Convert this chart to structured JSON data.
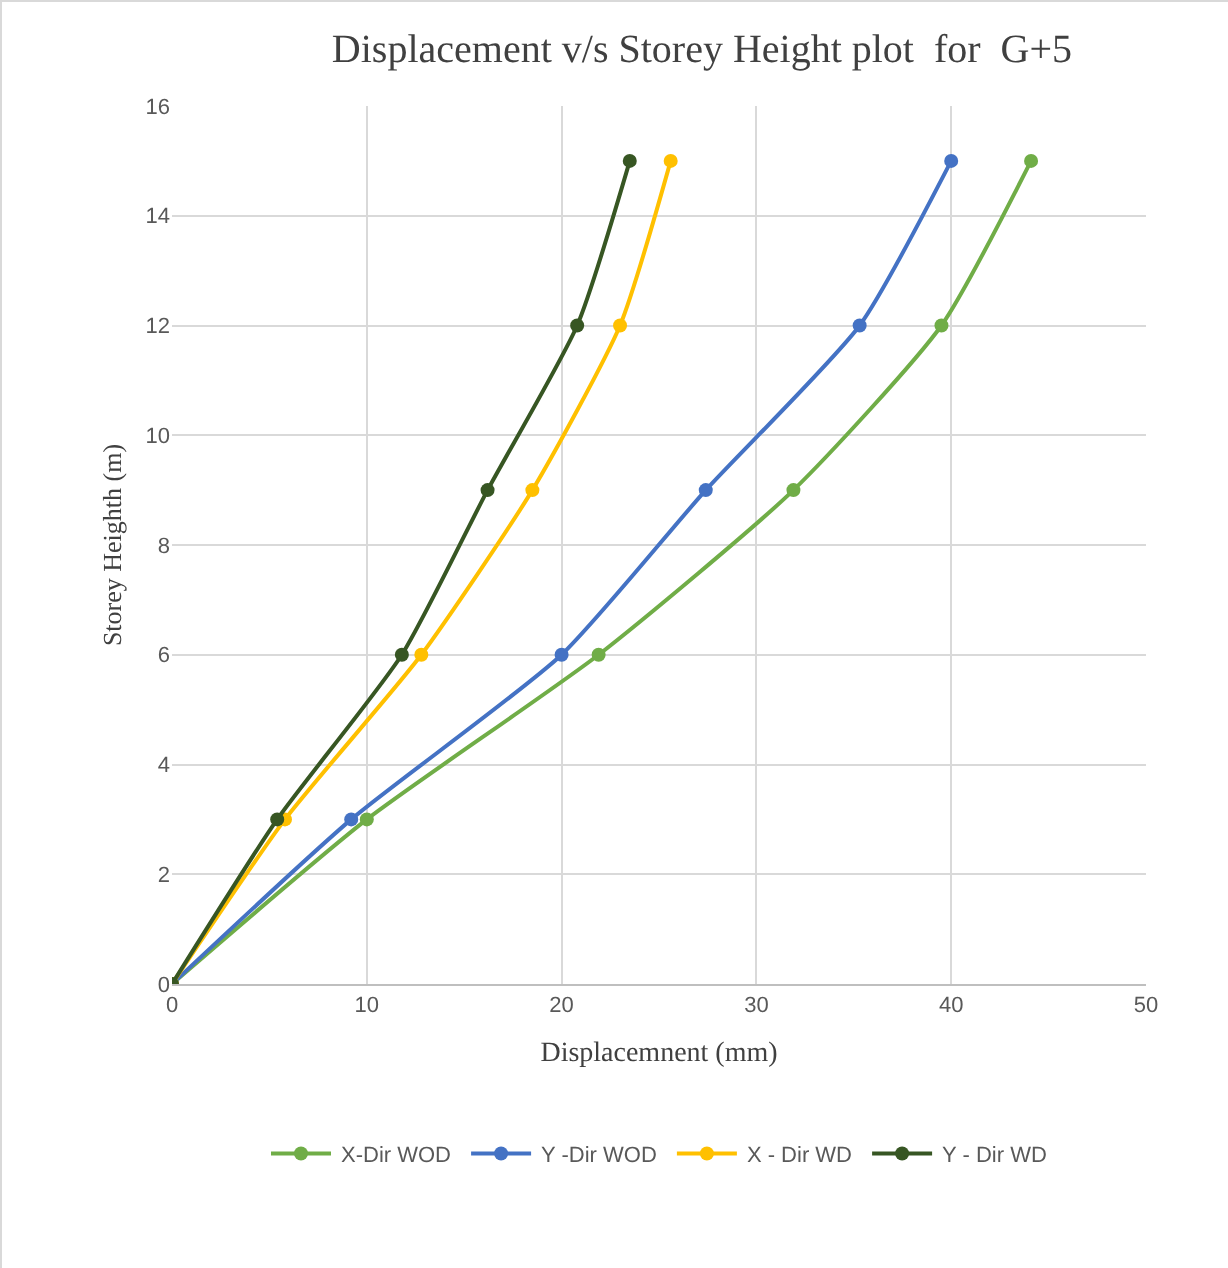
{
  "chart_data": {
    "type": "line",
    "title": "Displacement v/s Storey Height plot  for  G+5",
    "xlabel": "Displacemnent (mm)",
    "ylabel": "Storey Heighth (m)",
    "xlim": [
      0,
      50
    ],
    "xticks": [
      0,
      10,
      20,
      30,
      40,
      50
    ],
    "ylim": [
      0,
      16
    ],
    "yticks": [
      0,
      2,
      4,
      6,
      8,
      10,
      12,
      14,
      16
    ],
    "grid": true,
    "legend": "bottom",
    "marker": "circle",
    "line_style": "solid",
    "series": [
      {
        "name": "X-Dir WOD",
        "color": "#70ad47",
        "x": [
          0,
          10.0,
          21.9,
          31.9,
          39.5,
          44.1
        ],
        "values": [
          0,
          3,
          6,
          9,
          12,
          15
        ]
      },
      {
        "name": "Y -Dir WOD",
        "color": "#4472c4",
        "x": [
          0,
          9.2,
          20.0,
          27.4,
          35.3,
          40.0
        ],
        "values": [
          0,
          3,
          6,
          9,
          12,
          15
        ]
      },
      {
        "name": "X - Dir WD",
        "color": "#ffc000",
        "x": [
          0,
          5.8,
          12.8,
          18.5,
          23.0,
          25.6
        ],
        "values": [
          0,
          3,
          6,
          9,
          12,
          15
        ]
      },
      {
        "name": "Y - Dir WD",
        "color": "#375623",
        "x": [
          0,
          5.4,
          11.8,
          16.2,
          20.8,
          23.5
        ],
        "values": [
          0,
          3,
          6,
          9,
          12,
          15
        ]
      }
    ]
  }
}
